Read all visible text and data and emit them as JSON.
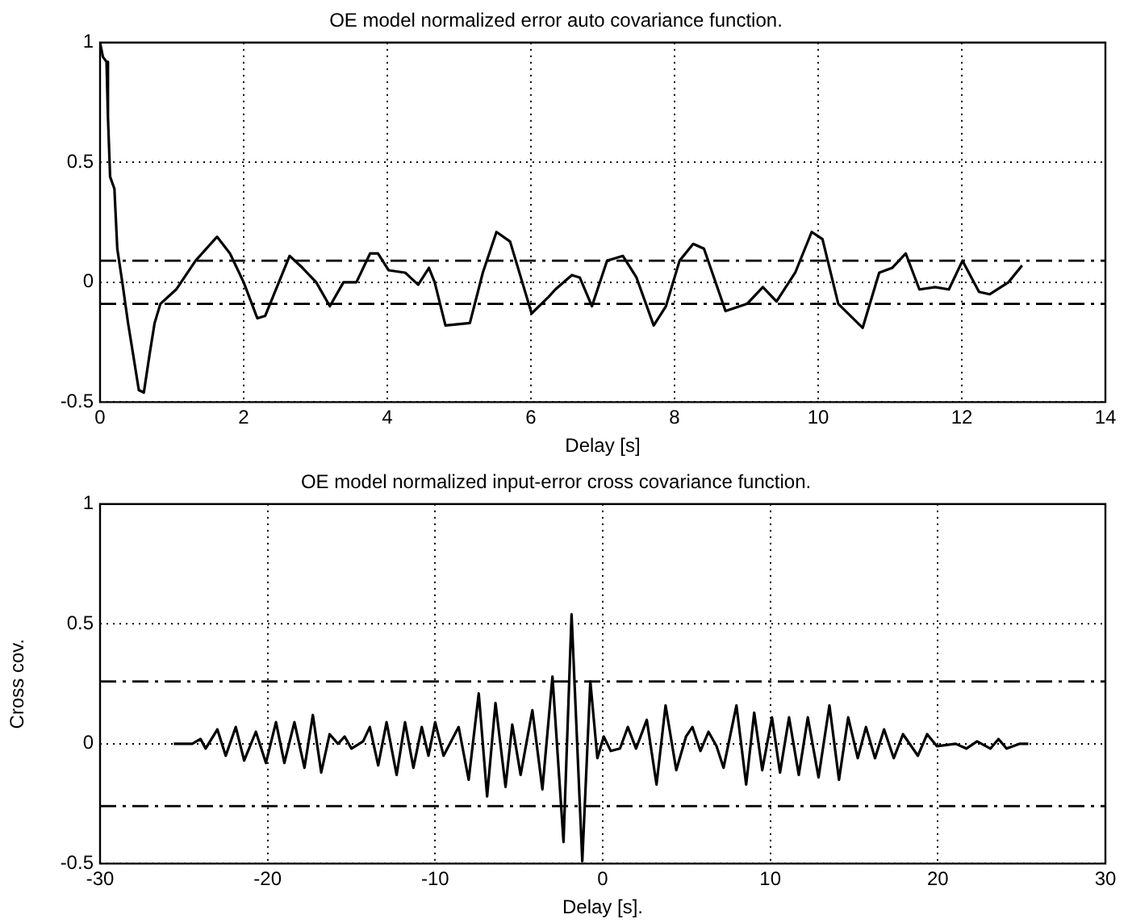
{
  "chart_data": [
    {
      "type": "line",
      "title": "OE model normalized error auto covariance function.",
      "xlabel": "Delay [s]",
      "xlim": [
        0,
        14
      ],
      "xticks": [
        0,
        2,
        4,
        6,
        8,
        10,
        12,
        14
      ],
      "ylim": [
        -0.5,
        1
      ],
      "yticks": [
        -0.5,
        0,
        0.5,
        1
      ],
      "grid": true,
      "legend": false,
      "series": [
        {
          "color": "#000000",
          "x": [
            0,
            0.04,
            0.09,
            0.11,
            0.14,
            0.2,
            0.24,
            0.31,
            0.39,
            0.46,
            0.54,
            0.61,
            0.69,
            0.76,
            0.84,
            1.06,
            1.33,
            1.63,
            1.81,
            2.0,
            2.19,
            2.3,
            2.64,
            2.82,
            3.01,
            3.2,
            3.39,
            3.57,
            3.76,
            3.87,
            4.02,
            4.25,
            4.43,
            4.58,
            4.66,
            4.81,
            5.15,
            5.33,
            5.52,
            5.71,
            6.01,
            6.25,
            6.34,
            6.57,
            6.68,
            6.85,
            7.06,
            7.28,
            7.47,
            7.71,
            7.88,
            8.07,
            8.26,
            8.41,
            8.71,
            9.01,
            9.23,
            9.42,
            9.68,
            9.91,
            10.06,
            10.28,
            10.62,
            10.85,
            11.03,
            11.22,
            11.41,
            11.63,
            11.82,
            12.01,
            12.24,
            12.39,
            12.65,
            12.84
          ],
          "values": [
            1.0,
            0.94,
            0.92,
            0.69,
            0.44,
            0.39,
            0.14,
            0,
            -0.17,
            -0.3,
            -0.45,
            -0.46,
            -0.3,
            -0.17,
            -0.09,
            -0.03,
            0.09,
            0.19,
            0.12,
            0,
            -0.15,
            -0.14,
            0.11,
            0.06,
            0,
            -0.1,
            0,
            0,
            0.12,
            0.12,
            0.05,
            0.04,
            -0.01,
            0.06,
            0,
            -0.18,
            -0.17,
            0.04,
            0.21,
            0.17,
            -0.13,
            -0.06,
            -0.03,
            0.03,
            0.02,
            -0.1,
            0.09,
            0.11,
            0.02,
            -0.18,
            -0.1,
            0.09,
            0.16,
            0.14,
            -0.12,
            -0.09,
            -0.02,
            -0.08,
            0.04,
            0.21,
            0.18,
            -0.09,
            -0.19,
            0.04,
            0.06,
            0.12,
            -0.03,
            -0.02,
            -0.03,
            0.09,
            -0.04,
            -0.05,
            0,
            0.07
          ]
        }
      ],
      "ref_lines": [
        {
          "axis": "y",
          "value": 0.09,
          "line_style": "dashed",
          "color": "#000000"
        },
        {
          "axis": "y",
          "value": -0.09,
          "line_style": "dashed",
          "color": "#000000"
        }
      ]
    },
    {
      "type": "line",
      "title": "OE model normalized input-error cross covariance function.",
      "xlabel": "Delay [s].",
      "ylabel": "Cross cov.",
      "xlim": [
        -30,
        30
      ],
      "xticks": [
        -30,
        -20,
        -10,
        0,
        10,
        20,
        30
      ],
      "ylim": [
        -0.5,
        1
      ],
      "yticks": [
        -0.5,
        0,
        0.5,
        1
      ],
      "grid": true,
      "legend": false,
      "series": [
        {
          "color": "#000000",
          "x": [
            -25.6,
            -24.5,
            -24.0,
            -23.7,
            -23.0,
            -22.5,
            -21.9,
            -21.4,
            -20.7,
            -20.1,
            -19.5,
            -19.0,
            -18.4,
            -17.8,
            -17.3,
            -16.8,
            -16.3,
            -15.8,
            -15.4,
            -15.0,
            -14.3,
            -13.9,
            -13.4,
            -12.9,
            -12.3,
            -11.8,
            -11.3,
            -10.8,
            -10.4,
            -10.0,
            -9.5,
            -8.6,
            -8.0,
            -7.4,
            -6.9,
            -6.4,
            -5.8,
            -5.4,
            -4.9,
            -4.2,
            -3.6,
            -3.0,
            -2.34,
            -1.86,
            -1.22,
            -0.74,
            -0.32,
            0.06,
            0.48,
            1.03,
            1.5,
            1.99,
            2.63,
            3.21,
            3.75,
            4.39,
            4.97,
            5.35,
            5.83,
            6.31,
            6.79,
            7.21,
            7.98,
            8.56,
            9.04,
            9.52,
            10.1,
            10.58,
            11.12,
            11.7,
            12.24,
            12.88,
            13.53,
            14.1,
            14.65,
            15.22,
            15.71,
            16.25,
            16.79,
            17.37,
            17.92,
            18.81,
            19.36,
            19.94,
            21.06,
            21.7,
            22.34,
            23.14,
            23.62,
            24.1,
            24.9,
            25.4
          ],
          "values": [
            0,
            0,
            0.02,
            -0.02,
            0.06,
            -0.05,
            0.07,
            -0.07,
            0.05,
            -0.08,
            0.09,
            -0.08,
            0.09,
            -0.1,
            0.12,
            -0.12,
            0.04,
            0,
            0.03,
            -0.02,
            0.01,
            0.07,
            -0.09,
            0.09,
            -0.13,
            0.09,
            -0.1,
            0.07,
            -0.05,
            0.09,
            -0.05,
            0.07,
            -0.15,
            0.21,
            -0.22,
            0.17,
            -0.18,
            0.08,
            -0.13,
            0.14,
            -0.19,
            0.28,
            -0.41,
            0.54,
            -0.49,
            0.26,
            -0.06,
            0.03,
            -0.03,
            -0.02,
            0.07,
            -0.02,
            0.1,
            -0.17,
            0.16,
            -0.11,
            0.03,
            0.07,
            -0.03,
            0.05,
            -0.01,
            -0.1,
            0.16,
            -0.17,
            0.13,
            -0.11,
            0.11,
            -0.12,
            0.11,
            -0.13,
            0.11,
            -0.14,
            0.16,
            -0.15,
            0.11,
            -0.06,
            0.07,
            -0.06,
            0.06,
            -0.06,
            0.04,
            -0.05,
            0.04,
            -0.01,
            0,
            -0.02,
            0.01,
            -0.02,
            0.02,
            -0.02,
            0,
            0
          ]
        }
      ],
      "ref_lines": [
        {
          "axis": "y",
          "value": 0.26,
          "line_style": "dashed",
          "color": "#000000"
        },
        {
          "axis": "y",
          "value": -0.26,
          "line_style": "dashed",
          "color": "#000000"
        }
      ]
    }
  ]
}
